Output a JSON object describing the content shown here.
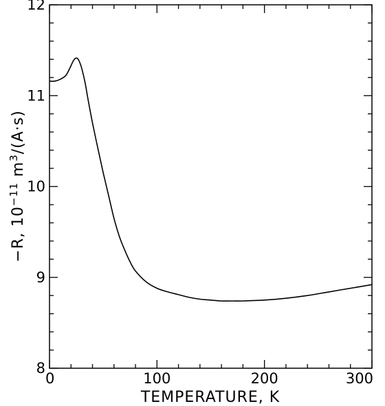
{
  "chart_data": {
    "type": "line",
    "xlabel": "TEMPERATURE, K",
    "ylabel_prefix": "−R, 10",
    "ylabel_exp": "−11",
    "ylabel_unit": " m",
    "ylabel_unit_exp": "3",
    "ylabel_suffix": "/(A·s)",
    "xlim": [
      0,
      300
    ],
    "ylim": [
      8,
      12
    ],
    "xticks": [
      0,
      100,
      200,
      300
    ],
    "yticks": [
      8,
      9,
      10,
      11,
      12
    ],
    "xtick_labels": [
      "0",
      "100",
      "200",
      "300"
    ],
    "ytick_labels": [
      "8",
      "9",
      "10",
      "11",
      "12"
    ],
    "grid": false,
    "series": [
      {
        "x": [
          0,
          5,
          10,
          15,
          18,
          20,
          22,
          24,
          26,
          28,
          30,
          33,
          36,
          40,
          45,
          50,
          55,
          60,
          65,
          70,
          75,
          80,
          90,
          100,
          110,
          120,
          130,
          140,
          150,
          160,
          170,
          180,
          190,
          200,
          220,
          240,
          260,
          280,
          300
        ],
        "y": [
          11.16,
          11.16,
          11.18,
          11.22,
          11.28,
          11.33,
          11.38,
          11.41,
          11.41,
          11.37,
          11.3,
          11.15,
          10.95,
          10.7,
          10.42,
          10.15,
          9.9,
          9.65,
          9.45,
          9.3,
          9.17,
          9.07,
          8.95,
          8.88,
          8.84,
          8.81,
          8.78,
          8.76,
          8.75,
          8.74,
          8.74,
          8.74,
          8.745,
          8.75,
          8.77,
          8.8,
          8.84,
          8.88,
          8.92
        ]
      }
    ]
  }
}
